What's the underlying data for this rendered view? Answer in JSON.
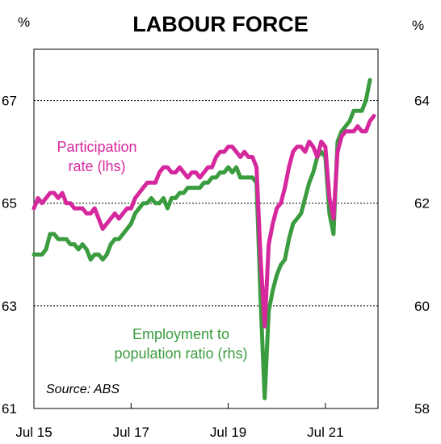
{
  "chart_data": {
    "type": "line",
    "title": "LABOUR FORCE",
    "source": "Source: ABS",
    "left_axis": {
      "unit": "%",
      "ylim": [
        61,
        68
      ],
      "ticks": [
        61,
        63,
        65,
        67
      ],
      "tick_labels": [
        "61",
        "63",
        "65",
        "67"
      ]
    },
    "right_axis": {
      "unit": "%",
      "ylim": [
        58,
        65
      ],
      "ticks": [
        58,
        60,
        62,
        64
      ],
      "tick_labels": [
        "58",
        "60",
        "62",
        "64"
      ]
    },
    "x_ticks": [
      "Jul 15",
      "Jul 17",
      "Jul 19",
      "Jul 21"
    ],
    "x_range": [
      "2015-07",
      "2022-08"
    ],
    "grid": "dotted horizontal",
    "series": [
      {
        "name": "Participation rate (lhs)",
        "annotation_lines": [
          "Participation",
          "rate (lhs)"
        ],
        "axis": "left",
        "color": "#D6289D",
        "points": [
          [
            "2015-07",
            64.9
          ],
          [
            "2015-08",
            65.1
          ],
          [
            "2015-09",
            65.0
          ],
          [
            "2015-10",
            65.1
          ],
          [
            "2015-11",
            65.2
          ],
          [
            "2015-12",
            65.2
          ],
          [
            "2016-01",
            65.1
          ],
          [
            "2016-02",
            65.2
          ],
          [
            "2016-03",
            65.0
          ],
          [
            "2016-04",
            65.0
          ],
          [
            "2016-05",
            64.9
          ],
          [
            "2016-06",
            64.9
          ],
          [
            "2016-07",
            64.9
          ],
          [
            "2016-08",
            64.8
          ],
          [
            "2016-09",
            64.8
          ],
          [
            "2016-10",
            64.9
          ],
          [
            "2016-11",
            64.7
          ],
          [
            "2016-12",
            64.5
          ],
          [
            "2017-01",
            64.6
          ],
          [
            "2017-02",
            64.7
          ],
          [
            "2017-03",
            64.8
          ],
          [
            "2017-04",
            64.7
          ],
          [
            "2017-05",
            64.8
          ],
          [
            "2017-06",
            64.9
          ],
          [
            "2017-07",
            64.9
          ],
          [
            "2017-08",
            65.1
          ],
          [
            "2017-09",
            65.2
          ],
          [
            "2017-10",
            65.3
          ],
          [
            "2017-11",
            65.4
          ],
          [
            "2017-12",
            65.4
          ],
          [
            "2018-01",
            65.4
          ],
          [
            "2018-02",
            65.6
          ],
          [
            "2018-03",
            65.7
          ],
          [
            "2018-04",
            65.7
          ],
          [
            "2018-05",
            65.6
          ],
          [
            "2018-06",
            65.6
          ],
          [
            "2018-07",
            65.7
          ],
          [
            "2018-08",
            65.6
          ],
          [
            "2018-09",
            65.5
          ],
          [
            "2018-10",
            65.6
          ],
          [
            "2018-11",
            65.6
          ],
          [
            "2018-12",
            65.5
          ],
          [
            "2019-01",
            65.6
          ],
          [
            "2019-02",
            65.7
          ],
          [
            "2019-03",
            65.7
          ],
          [
            "2019-04",
            65.9
          ],
          [
            "2019-05",
            66.0
          ],
          [
            "2019-06",
            66.0
          ],
          [
            "2019-07",
            66.1
          ],
          [
            "2019-08",
            66.1
          ],
          [
            "2019-09",
            66.0
          ],
          [
            "2019-10",
            65.9
          ],
          [
            "2019-11",
            66.0
          ],
          [
            "2019-12",
            65.9
          ],
          [
            "2020-01",
            65.9
          ],
          [
            "2020-02",
            65.7
          ],
          [
            "2020-03",
            63.9
          ],
          [
            "2020-04",
            62.6
          ],
          [
            "2020-05",
            64.2
          ],
          [
            "2020-06",
            64.6
          ],
          [
            "2020-07",
            64.9
          ],
          [
            "2020-08",
            65.0
          ],
          [
            "2020-09",
            65.3
          ],
          [
            "2020-10",
            65.7
          ],
          [
            "2020-11",
            66.0
          ],
          [
            "2020-12",
            66.1
          ],
          [
            "2021-01",
            66.1
          ],
          [
            "2021-02",
            66.0
          ],
          [
            "2021-03",
            66.2
          ],
          [
            "2021-04",
            66.1
          ],
          [
            "2021-05",
            65.9
          ],
          [
            "2021-06",
            66.2
          ],
          [
            "2021-07",
            66.1
          ],
          [
            "2021-08",
            65.1
          ],
          [
            "2021-09",
            64.7
          ],
          [
            "2021-10",
            66.0
          ],
          [
            "2021-11",
            66.3
          ],
          [
            "2021-12",
            66.4
          ],
          [
            "2022-01",
            66.4
          ],
          [
            "2022-02",
            66.4
          ],
          [
            "2022-03",
            66.5
          ],
          [
            "2022-04",
            66.4
          ],
          [
            "2022-05",
            66.4
          ],
          [
            "2022-06",
            66.6
          ],
          [
            "2022-07",
            66.7
          ]
        ]
      },
      {
        "name": "Employment to population ratio (rhs)",
        "annotation_lines": [
          "Employment to",
          "population ratio (rhs)"
        ],
        "axis": "right",
        "color": "#3A9C3F",
        "points": [
          [
            "2015-07",
            61.0
          ],
          [
            "2015-08",
            61.0
          ],
          [
            "2015-09",
            61.0
          ],
          [
            "2015-10",
            61.1
          ],
          [
            "2015-11",
            61.4
          ],
          [
            "2015-12",
            61.4
          ],
          [
            "2016-01",
            61.3
          ],
          [
            "2016-02",
            61.3
          ],
          [
            "2016-03",
            61.3
          ],
          [
            "2016-04",
            61.2
          ],
          [
            "2016-05",
            61.2
          ],
          [
            "2016-06",
            61.1
          ],
          [
            "2016-07",
            61.2
          ],
          [
            "2016-08",
            61.1
          ],
          [
            "2016-09",
            60.9
          ],
          [
            "2016-10",
            61.0
          ],
          [
            "2016-11",
            61.0
          ],
          [
            "2016-12",
            60.9
          ],
          [
            "2017-01",
            61.0
          ],
          [
            "2017-02",
            61.2
          ],
          [
            "2017-03",
            61.3
          ],
          [
            "2017-04",
            61.3
          ],
          [
            "2017-05",
            61.4
          ],
          [
            "2017-06",
            61.5
          ],
          [
            "2017-07",
            61.6
          ],
          [
            "2017-08",
            61.8
          ],
          [
            "2017-09",
            61.9
          ],
          [
            "2017-10",
            62.0
          ],
          [
            "2017-11",
            62.0
          ],
          [
            "2017-12",
            62.1
          ],
          [
            "2018-01",
            62.0
          ],
          [
            "2018-02",
            62.0
          ],
          [
            "2018-03",
            62.1
          ],
          [
            "2018-04",
            61.9
          ],
          [
            "2018-05",
            62.1
          ],
          [
            "2018-06",
            62.1
          ],
          [
            "2018-07",
            62.2
          ],
          [
            "2018-08",
            62.2
          ],
          [
            "2018-09",
            62.3
          ],
          [
            "2018-10",
            62.3
          ],
          [
            "2018-11",
            62.3
          ],
          [
            "2018-12",
            62.3
          ],
          [
            "2019-01",
            62.4
          ],
          [
            "2019-02",
            62.4
          ],
          [
            "2019-03",
            62.5
          ],
          [
            "2019-04",
            62.5
          ],
          [
            "2019-05",
            62.6
          ],
          [
            "2019-06",
            62.6
          ],
          [
            "2019-07",
            62.7
          ],
          [
            "2019-08",
            62.6
          ],
          [
            "2019-09",
            62.7
          ],
          [
            "2019-10",
            62.5
          ],
          [
            "2019-11",
            62.5
          ],
          [
            "2019-12",
            62.5
          ],
          [
            "2020-01",
            62.5
          ],
          [
            "2020-02",
            62.4
          ],
          [
            "2020-03",
            60.1
          ],
          [
            "2020-04",
            58.2
          ],
          [
            "2020-05",
            59.9
          ],
          [
            "2020-06",
            60.3
          ],
          [
            "2020-07",
            60.6
          ],
          [
            "2020-08",
            60.8
          ],
          [
            "2020-09",
            60.9
          ],
          [
            "2020-10",
            61.3
          ],
          [
            "2020-11",
            61.6
          ],
          [
            "2020-12",
            61.7
          ],
          [
            "2021-01",
            61.8
          ],
          [
            "2021-02",
            62.1
          ],
          [
            "2021-03",
            62.4
          ],
          [
            "2021-04",
            62.6
          ],
          [
            "2021-05",
            62.9
          ],
          [
            "2021-06",
            63.0
          ],
          [
            "2021-07",
            62.9
          ],
          [
            "2021-08",
            61.8
          ],
          [
            "2021-09",
            61.4
          ],
          [
            "2021-10",
            63.2
          ],
          [
            "2021-11",
            63.4
          ],
          [
            "2021-12",
            63.5
          ],
          [
            "2022-01",
            63.6
          ],
          [
            "2022-02",
            63.8
          ],
          [
            "2022-03",
            63.8
          ],
          [
            "2022-04",
            63.8
          ],
          [
            "2022-05",
            64.0
          ],
          [
            "2022-06",
            64.4
          ]
        ]
      }
    ]
  }
}
